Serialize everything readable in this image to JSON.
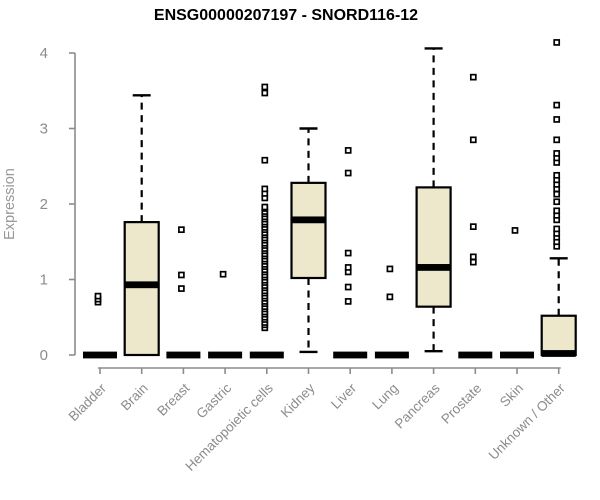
{
  "title": "ENSG00000207197 - SNORD116-12",
  "colors": {
    "background": "#ffffff",
    "box_fill": "#ede8cc",
    "box_stroke": "#000000",
    "median": "#000000",
    "whisker": "#000000",
    "outlier_stroke": "#000000",
    "outlier_fill": "#ffffff",
    "axis": "#8c8c8c",
    "tick_label": "#8c8c8c",
    "title_color": "#000000"
  },
  "chart_data": {
    "type": "boxplot",
    "title": "ENSG00000207197 - SNORD116-12",
    "xlabel": "",
    "ylabel": "Expression",
    "ylim": [
      0,
      4
    ],
    "yticks": [
      0,
      1,
      2,
      3,
      4
    ],
    "grid": false,
    "legend": false,
    "categories": [
      "Bladder",
      "Brain",
      "Breast",
      "Gastric",
      "Hematopoietic cells",
      "Kidney",
      "Liver",
      "Lung",
      "Pancreas",
      "Prostate",
      "Skin",
      "Unknown / Other"
    ],
    "boxes": [
      {
        "name": "Bladder",
        "q1": 0,
        "median": 0,
        "q3": 0,
        "whisker_low": 0,
        "whisker_high": 0,
        "outliers": [
          0.7,
          0.74,
          0.78
        ]
      },
      {
        "name": "Brain",
        "q1": 0,
        "median": 0.93,
        "q3": 1.76,
        "whisker_low": 0,
        "whisker_high": 3.44,
        "outliers": []
      },
      {
        "name": "Breast",
        "q1": 0,
        "median": 0,
        "q3": 0,
        "whisker_low": 0,
        "whisker_high": 0,
        "outliers": [
          0.88,
          1.06,
          1.66
        ]
      },
      {
        "name": "Gastric",
        "q1": 0,
        "median": 0,
        "q3": 0,
        "whisker_low": 0,
        "whisker_high": 0,
        "outliers": [
          1.07
        ]
      },
      {
        "name": "Hematopoietic cells",
        "q1": 0,
        "median": 0,
        "q3": 0,
        "whisker_low": 0,
        "whisker_high": 0,
        "outliers": [
          0.36,
          0.4,
          0.43,
          0.47,
          0.5,
          0.54,
          0.57,
          0.61,
          0.64,
          0.68,
          0.71,
          0.75,
          0.78,
          0.82,
          0.85,
          0.89,
          0.92,
          0.96,
          0.99,
          1.03,
          1.06,
          1.1,
          1.13,
          1.17,
          1.2,
          1.24,
          1.27,
          1.31,
          1.34,
          1.38,
          1.41,
          1.45,
          1.48,
          1.52,
          1.55,
          1.59,
          1.62,
          1.66,
          1.69,
          1.73,
          1.76,
          1.8,
          1.83,
          1.87,
          1.9,
          1.94,
          1.96,
          2.08,
          2.14,
          2.2,
          2.58,
          3.47,
          3.55
        ]
      },
      {
        "name": "Kidney",
        "q1": 1.02,
        "median": 1.79,
        "q3": 2.28,
        "whisker_low": 0.04,
        "whisker_high": 3.0,
        "outliers": []
      },
      {
        "name": "Liver",
        "q1": 0,
        "median": 0,
        "q3": 0,
        "whisker_low": 0,
        "whisker_high": 0,
        "outliers": [
          0.71,
          0.9,
          1.1,
          1.16,
          1.35,
          2.41,
          2.71
        ]
      },
      {
        "name": "Lung",
        "q1": 0,
        "median": 0,
        "q3": 0,
        "whisker_low": 0,
        "whisker_high": 0,
        "outliers": [
          0.77,
          1.14
        ]
      },
      {
        "name": "Pancreas",
        "q1": 0.64,
        "median": 1.16,
        "q3": 2.22,
        "whisker_low": 0.05,
        "whisker_high": 4.06,
        "outliers": []
      },
      {
        "name": "Prostate",
        "q1": 0,
        "median": 0,
        "q3": 0,
        "whisker_low": 0,
        "whisker_high": 0,
        "outliers": [
          1.23,
          1.3,
          1.7,
          2.85,
          3.68
        ]
      },
      {
        "name": "Skin",
        "q1": 0,
        "median": 0,
        "q3": 0,
        "whisker_low": 0,
        "whisker_high": 0,
        "outliers": [
          1.65
        ]
      },
      {
        "name": "Unknown / Other",
        "q1": 0,
        "median": 0.02,
        "q3": 0.52,
        "whisker_low": 0,
        "whisker_high": 1.28,
        "outliers": [
          1.44,
          1.5,
          1.56,
          1.61,
          1.67,
          1.79,
          1.85,
          1.91,
          2.03,
          2.13,
          2.2,
          2.26,
          2.32,
          2.38,
          2.55,
          2.61,
          2.67,
          2.85,
          3.12,
          3.31,
          4.14
        ]
      }
    ]
  }
}
